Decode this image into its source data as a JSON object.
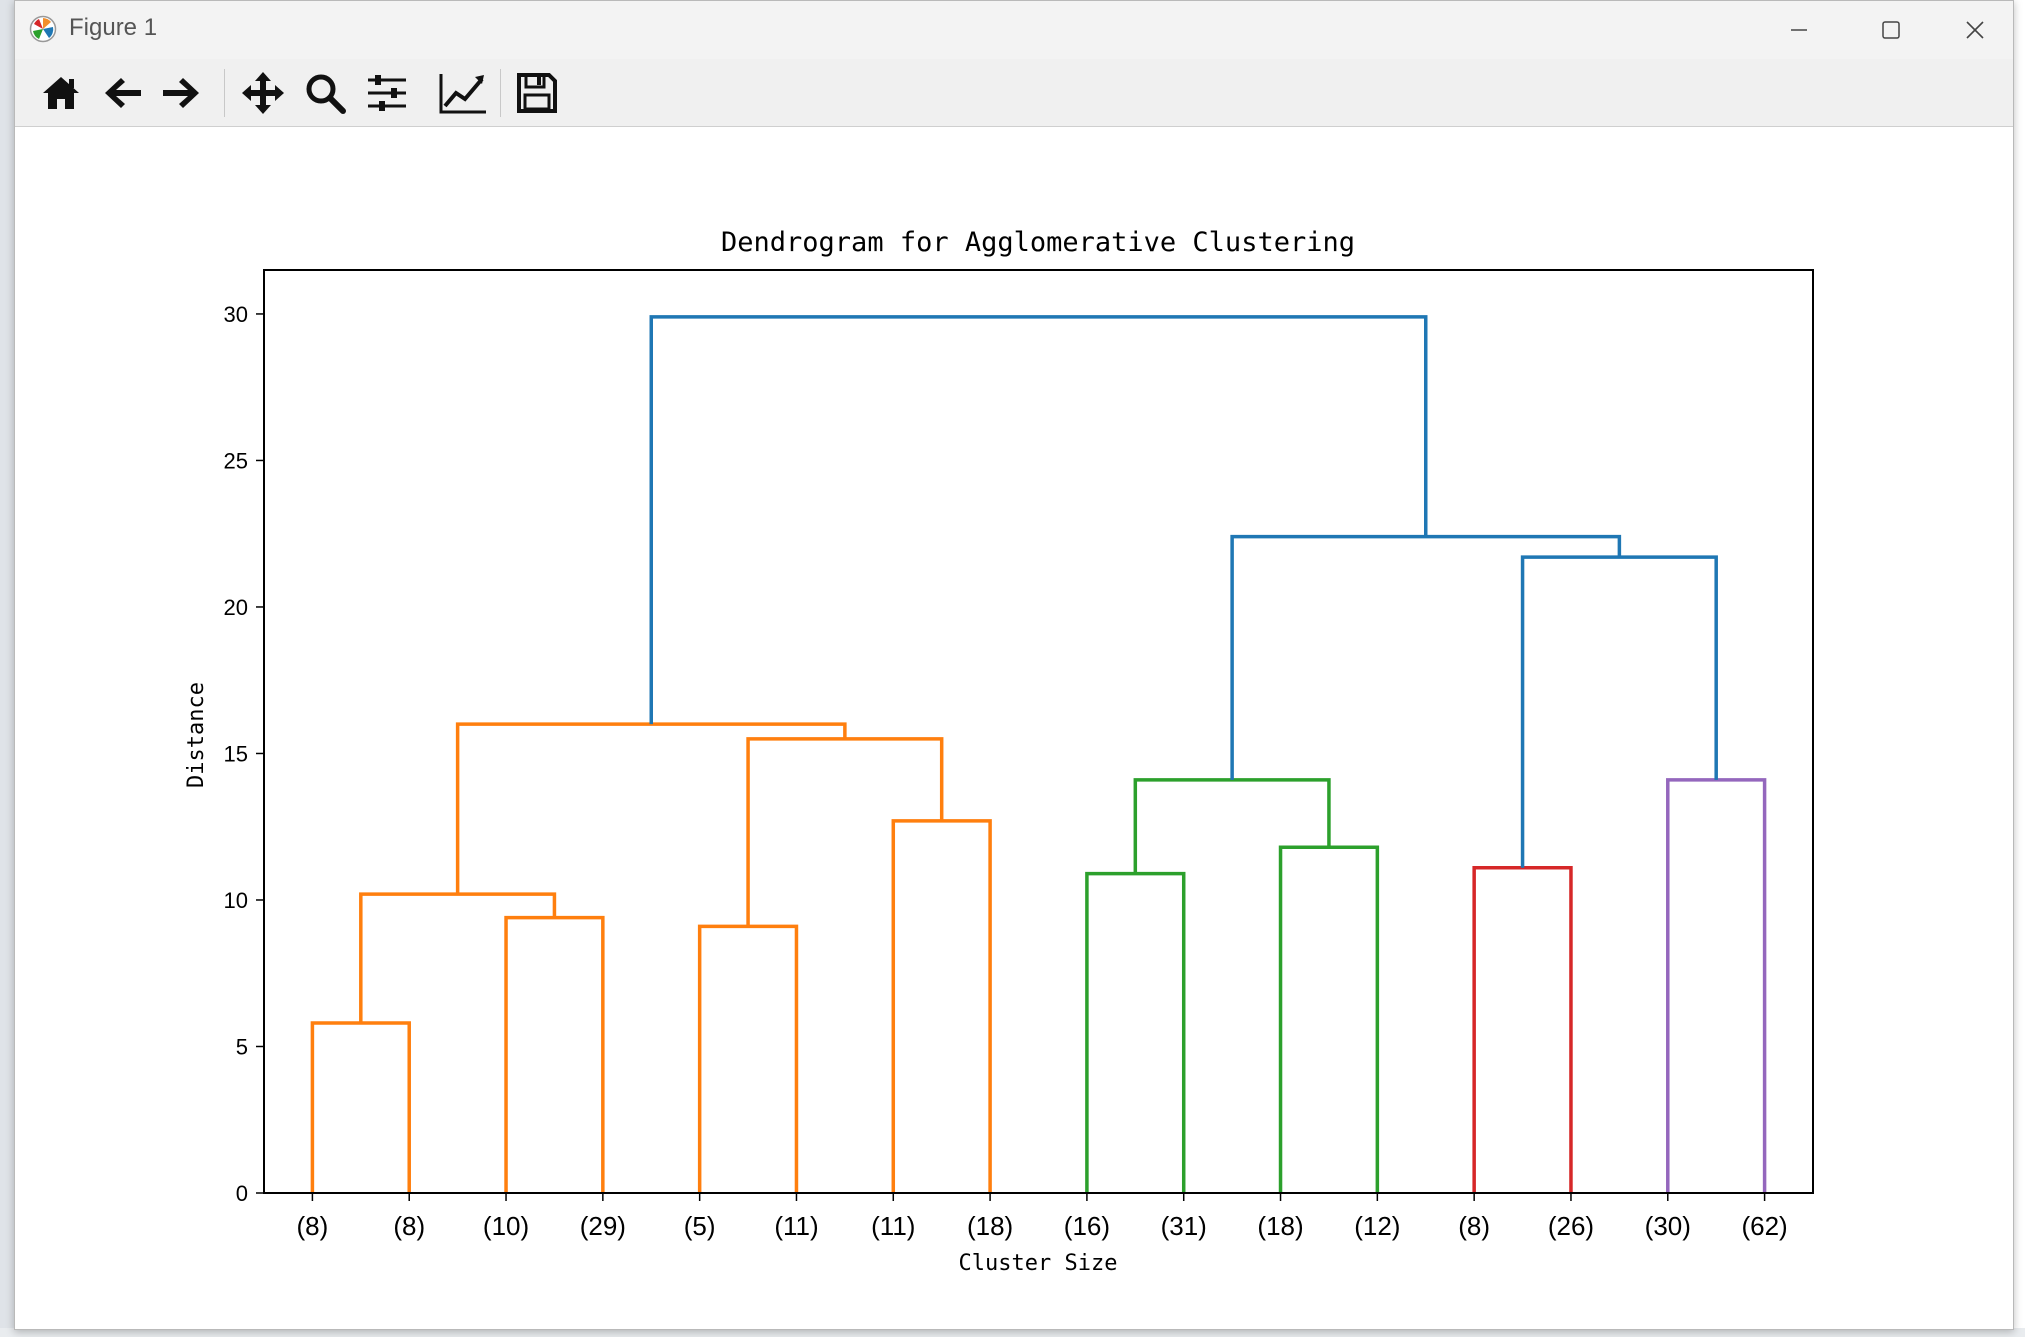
{
  "window": {
    "title": "Figure 1"
  },
  "toolbar": {
    "tools": [
      "home-icon",
      "back-arrow-icon",
      "forward-arrow-icon",
      "pan-move-icon",
      "zoom-magnifier-icon",
      "configure-subplots-icon",
      "edit-axis-icon",
      "save-icon"
    ]
  },
  "chart_data": {
    "type": "dendrogram",
    "title": "Dendrogram for Agglomerative Clustering",
    "xlabel": "Cluster Size",
    "ylabel": "Distance",
    "ylim": [
      0,
      31.5
    ],
    "yticks": [
      0,
      5,
      10,
      15,
      20,
      25,
      30
    ],
    "leaf_labels": [
      "(8)",
      "(8)",
      "(10)",
      "(29)",
      "(5)",
      "(11)",
      "(11)",
      "(18)",
      "(16)",
      "(31)",
      "(18)",
      "(12)",
      "(8)",
      "(26)",
      "(30)",
      "(62)"
    ],
    "colors": {
      "orange": "#ff7f0e",
      "green": "#2ca02c",
      "red": "#d62728",
      "purple": "#9467bd",
      "blue": "#1f77b4"
    },
    "merges": [
      {
        "left": "L0",
        "right": "L1",
        "height": 5.8,
        "color": "orange",
        "id": "A"
      },
      {
        "left": "L2",
        "right": "L3",
        "height": 9.4,
        "color": "orange",
        "id": "B"
      },
      {
        "left": "A",
        "right": "B",
        "height": 10.2,
        "color": "orange",
        "id": "C"
      },
      {
        "left": "L4",
        "right": "L5",
        "height": 9.1,
        "color": "orange",
        "id": "D"
      },
      {
        "left": "L6",
        "right": "L7",
        "height": 12.7,
        "color": "orange",
        "id": "E"
      },
      {
        "left": "D",
        "right": "E",
        "height": 15.5,
        "color": "orange",
        "id": "F"
      },
      {
        "left": "C",
        "right": "F",
        "height": 16.0,
        "color": "orange",
        "id": "G"
      },
      {
        "left": "L8",
        "right": "L9",
        "height": 10.9,
        "color": "green",
        "id": "H"
      },
      {
        "left": "L10",
        "right": "L11",
        "height": 11.8,
        "color": "green",
        "id": "I"
      },
      {
        "left": "H",
        "right": "I",
        "height": 14.1,
        "color": "green",
        "id": "J"
      },
      {
        "left": "L12",
        "right": "L13",
        "height": 11.1,
        "color": "red",
        "id": "K"
      },
      {
        "left": "L14",
        "right": "L15",
        "height": 14.1,
        "color": "purple",
        "id": "M"
      },
      {
        "left": "K",
        "right": "M",
        "height": 21.7,
        "color": "blue",
        "id": "N"
      },
      {
        "left": "J",
        "right": "N",
        "height": 22.4,
        "color": "blue",
        "id": "O"
      },
      {
        "left": "G",
        "right": "O",
        "height": 29.9,
        "color": "blue",
        "id": "P"
      }
    ]
  }
}
